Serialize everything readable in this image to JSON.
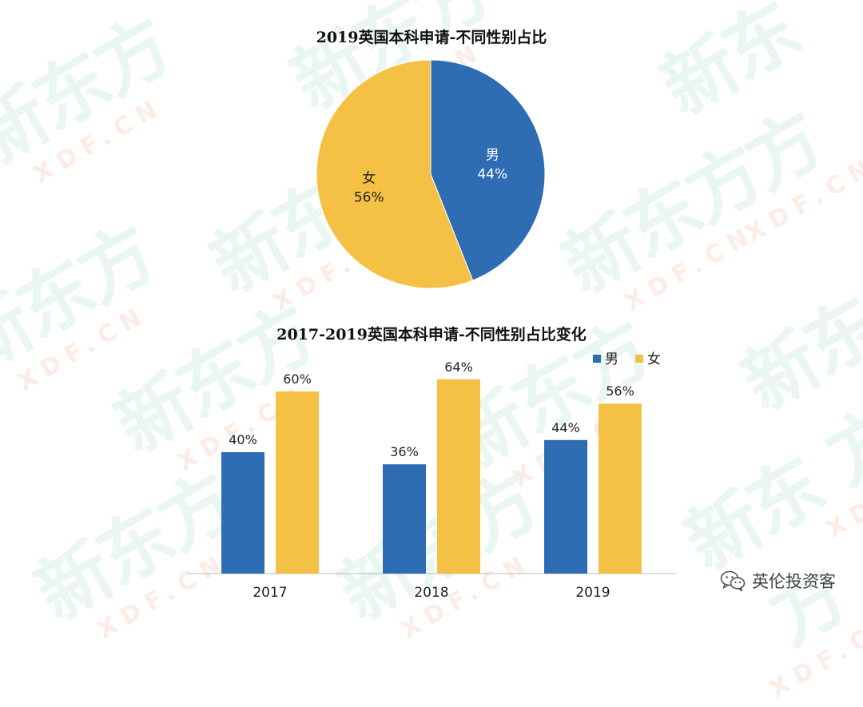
{
  "watermark": {
    "cn": "新东方",
    "en": "XDF.CN"
  },
  "footer": {
    "brand": "英伦投资客",
    "icon": "wechat-icon"
  },
  "colors": {
    "male": "#2e6db4",
    "female": "#f4c144",
    "axis": "#bbbbbb",
    "text": "#222222"
  },
  "chart_data": [
    {
      "type": "pie",
      "title": "2019英国本科申请-不同性别占比",
      "slices": [
        {
          "label": "男",
          "value": 44,
          "value_label": "44%"
        },
        {
          "label": "女",
          "value": 56,
          "value_label": "56%"
        }
      ]
    },
    {
      "type": "bar",
      "title": "2017-2019英国本科申请-不同性别占比变化",
      "categories": [
        "2017",
        "2018",
        "2019"
      ],
      "series": [
        {
          "name": "男",
          "values": [
            40,
            36,
            44
          ],
          "labels": [
            "40%",
            "36%",
            "44%"
          ]
        },
        {
          "name": "女",
          "values": [
            60,
            64,
            56
          ],
          "labels": [
            "60%",
            "64%",
            "56%"
          ]
        }
      ],
      "ylim": [
        0,
        70
      ],
      "legend": "top-right",
      "grid": false
    }
  ]
}
